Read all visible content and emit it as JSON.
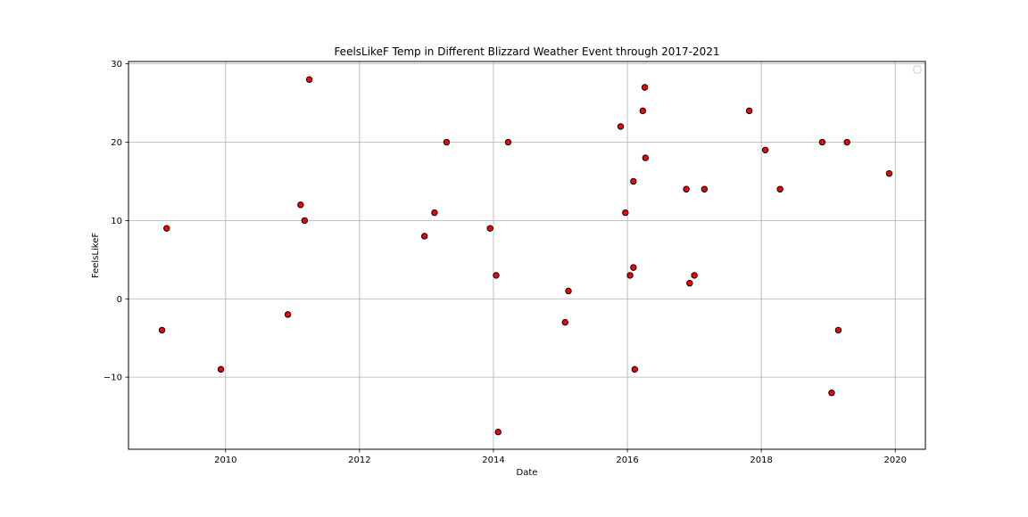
{
  "chart_data": {
    "type": "scatter",
    "title": "FeelsLikeF Temp in Different Blizzard Weather Event through 2017-2021",
    "xlabel": "Date",
    "ylabel": "FeelsLikeF",
    "x_ticks": [
      "2010",
      "2012",
      "2014",
      "2016",
      "2018",
      "2020"
    ],
    "x_tick_values": [
      2010,
      2012,
      2014,
      2016,
      2018,
      2020
    ],
    "y_ticks": [
      "−10",
      "0",
      "10",
      "20",
      "30"
    ],
    "y_tick_values": [
      -10,
      0,
      10,
      20,
      30
    ],
    "xlim": [
      2008.55,
      2020.45
    ],
    "ylim": [
      -19.2,
      30.3
    ],
    "grid": true,
    "legend": "top-right (empty)",
    "marker_color": "#ff0000",
    "marker_edge_color": "#000000",
    "points": [
      {
        "x": 2009.05,
        "y": -4
      },
      {
        "x": 2009.12,
        "y": 9
      },
      {
        "x": 2009.93,
        "y": -9
      },
      {
        "x": 2010.93,
        "y": -2
      },
      {
        "x": 2011.12,
        "y": 12
      },
      {
        "x": 2011.18,
        "y": 10
      },
      {
        "x": 2011.25,
        "y": 28
      },
      {
        "x": 2012.97,
        "y": 8
      },
      {
        "x": 2013.12,
        "y": 11
      },
      {
        "x": 2013.3,
        "y": 20
      },
      {
        "x": 2013.95,
        "y": 9
      },
      {
        "x": 2014.04,
        "y": 3
      },
      {
        "x": 2014.07,
        "y": -17
      },
      {
        "x": 2014.22,
        "y": 20
      },
      {
        "x": 2015.07,
        "y": -3
      },
      {
        "x": 2015.12,
        "y": 1
      },
      {
        "x": 2015.9,
        "y": 22
      },
      {
        "x": 2015.97,
        "y": 11
      },
      {
        "x": 2016.04,
        "y": 3
      },
      {
        "x": 2016.09,
        "y": 15
      },
      {
        "x": 2016.09,
        "y": 4
      },
      {
        "x": 2016.11,
        "y": -9
      },
      {
        "x": 2016.23,
        "y": 24
      },
      {
        "x": 2016.26,
        "y": 27
      },
      {
        "x": 2016.27,
        "y": 18
      },
      {
        "x": 2016.88,
        "y": 14
      },
      {
        "x": 2016.93,
        "y": 2
      },
      {
        "x": 2017.0,
        "y": 3
      },
      {
        "x": 2017.15,
        "y": 14
      },
      {
        "x": 2017.82,
        "y": 24
      },
      {
        "x": 2018.06,
        "y": 19
      },
      {
        "x": 2018.28,
        "y": 14
      },
      {
        "x": 2018.91,
        "y": 20
      },
      {
        "x": 2019.05,
        "y": -12
      },
      {
        "x": 2019.15,
        "y": -4
      },
      {
        "x": 2019.28,
        "y": 20
      },
      {
        "x": 2019.91,
        "y": 16
      }
    ]
  }
}
